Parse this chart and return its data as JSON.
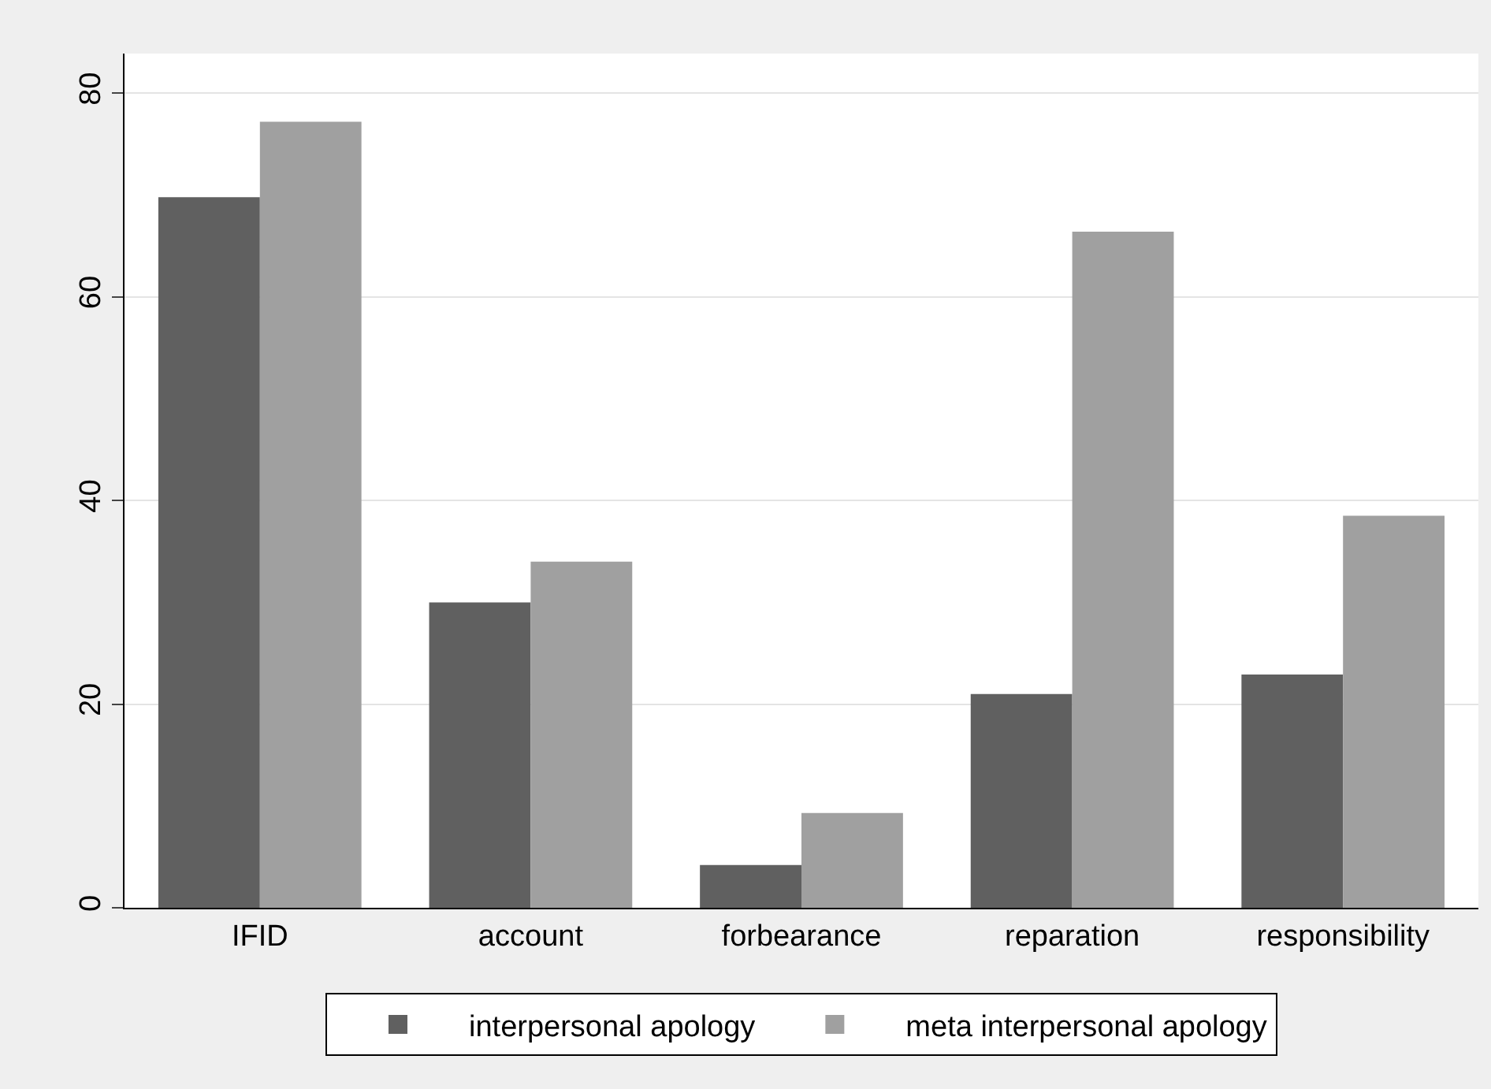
{
  "chart_data": {
    "type": "bar",
    "categories": [
      "IFID",
      "account",
      "forbearance",
      "reparation",
      "responsibility"
    ],
    "series": [
      {
        "name": "interpersonal apology",
        "color": "#606060",
        "values": [
          69.8,
          30.0,
          4.2,
          21.0,
          22.9
        ]
      },
      {
        "name": "meta interpersonal apology",
        "color": "#a0a0a0",
        "values": [
          77.2,
          34.0,
          9.3,
          66.4,
          38.5
        ]
      }
    ],
    "ylim": [
      0,
      83.9
    ],
    "yticks": [
      0,
      20,
      40,
      60,
      80
    ],
    "grid": "y",
    "legend": "bottom"
  }
}
